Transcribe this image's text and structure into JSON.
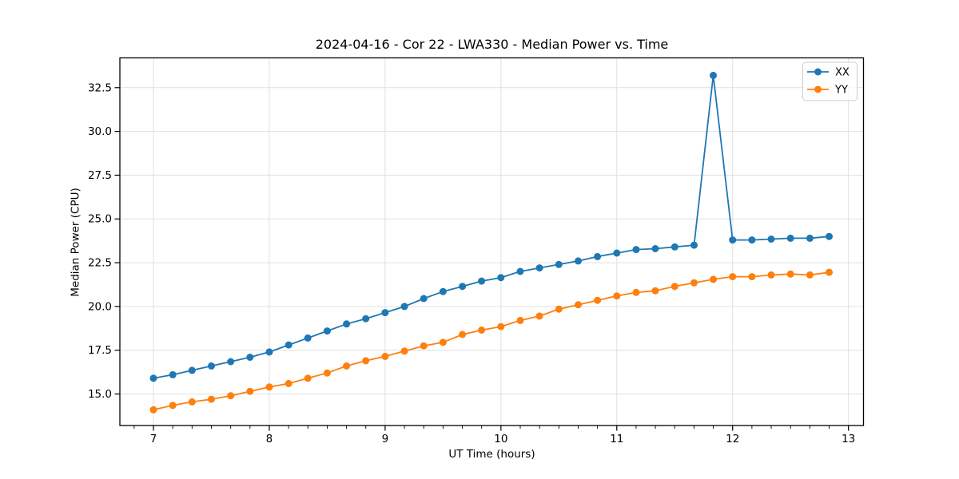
{
  "chart_data": {
    "type": "line",
    "title": "2024-04-16 - Cor 22 - LWA330 - Median Power vs. Time",
    "xlabel": "UT Time (hours)",
    "ylabel": "Median Power (CPU)",
    "xlim": [
      6.71,
      13.13
    ],
    "ylim": [
      13.2,
      34.2
    ],
    "x_major_ticks": [
      7,
      8,
      9,
      10,
      11,
      12,
      13
    ],
    "x_minor_tick_step": 0.16667,
    "y_major_ticks": [
      15.0,
      17.5,
      20.0,
      22.5,
      25.0,
      27.5,
      30.0,
      32.5
    ],
    "grid": true,
    "legend_position": "upper right",
    "x": [
      7.0,
      7.167,
      7.333,
      7.5,
      7.667,
      7.833,
      8.0,
      8.167,
      8.333,
      8.5,
      8.667,
      8.833,
      9.0,
      9.167,
      9.333,
      9.5,
      9.667,
      9.833,
      10.0,
      10.167,
      10.333,
      10.5,
      10.667,
      10.833,
      11.0,
      11.167,
      11.333,
      11.5,
      11.667,
      11.833,
      12.0,
      12.167,
      12.333,
      12.5,
      12.667,
      12.833
    ],
    "series": [
      {
        "name": "XX",
        "color": "#1f77b4",
        "values": [
          15.9,
          16.1,
          16.35,
          16.6,
          16.85,
          17.1,
          17.4,
          17.8,
          18.2,
          18.6,
          19.0,
          19.3,
          19.65,
          20.0,
          20.45,
          20.85,
          21.15,
          21.45,
          21.65,
          22.0,
          22.2,
          22.4,
          22.6,
          22.85,
          23.05,
          23.25,
          23.3,
          23.4,
          23.5,
          33.2,
          23.8,
          23.8,
          23.85,
          23.9,
          23.9,
          24.0
        ]
      },
      {
        "name": "YY",
        "color": "#ff7f0e",
        "values": [
          14.1,
          14.35,
          14.55,
          14.7,
          14.9,
          15.15,
          15.4,
          15.6,
          15.9,
          16.2,
          16.6,
          16.9,
          17.15,
          17.45,
          17.75,
          17.95,
          18.4,
          18.65,
          18.85,
          19.2,
          19.45,
          19.85,
          20.1,
          20.35,
          20.6,
          20.8,
          20.9,
          21.15,
          21.35,
          21.55,
          21.7,
          21.7,
          21.8,
          21.85,
          21.8,
          21.95
        ]
      }
    ]
  },
  "colors": {
    "background": "#ffffff",
    "grid": "#e0e0e0",
    "spine": "#000000",
    "legend_border": "#cccccc",
    "series_xx": "#1f77b4",
    "series_yy": "#ff7f0e"
  }
}
